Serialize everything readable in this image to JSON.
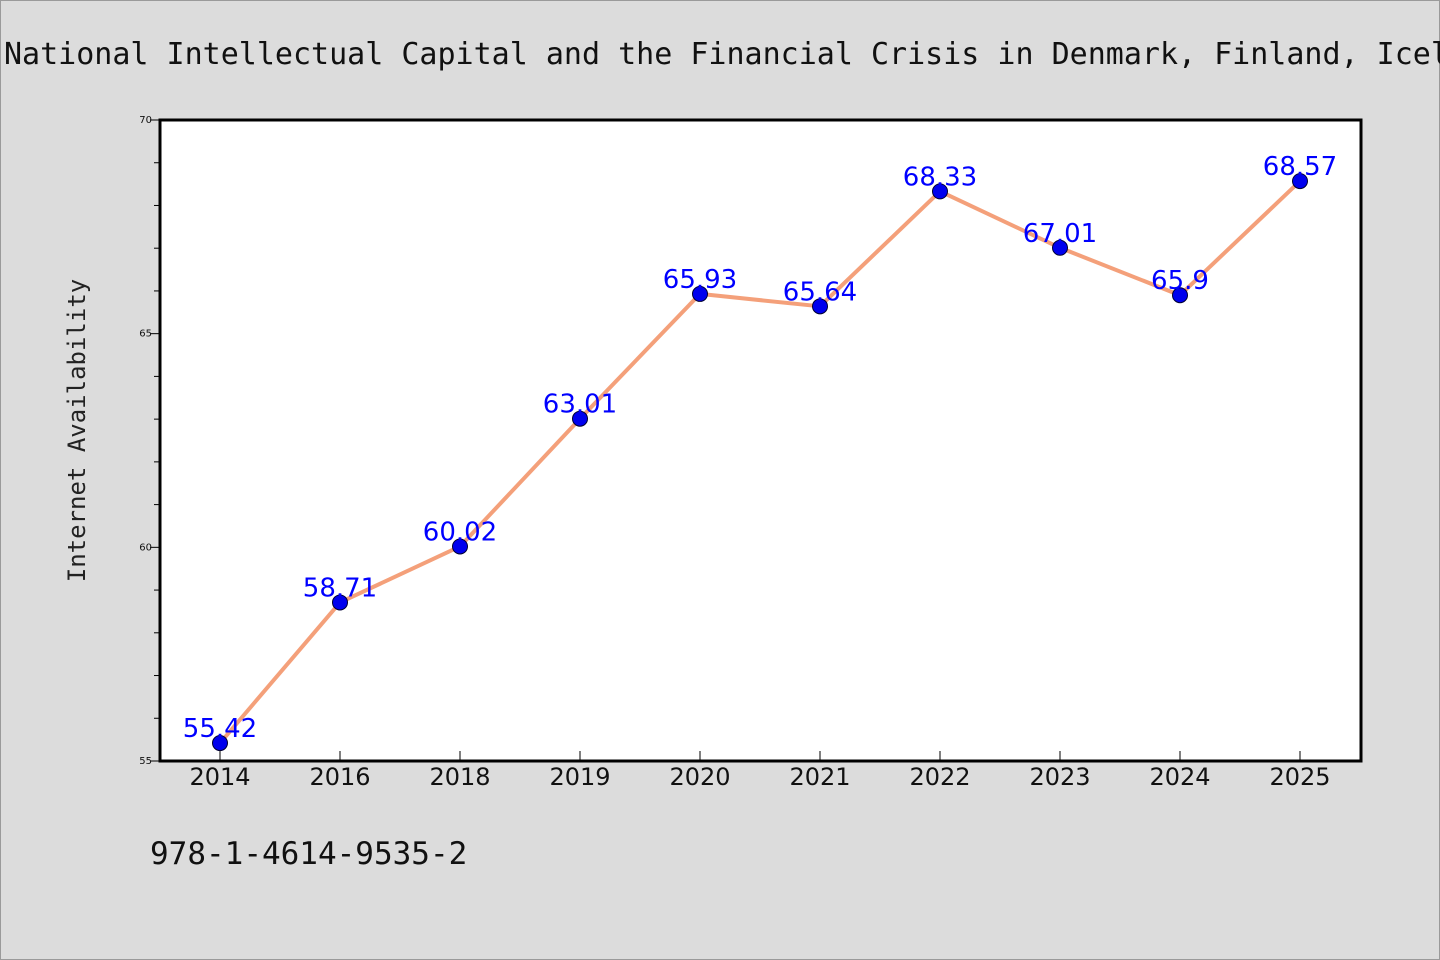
{
  "page": {
    "footer_text": "978-1-4614-9535-2"
  },
  "chart_data": {
    "type": "line",
    "title": "National Intellectual Capital and the Financial Crisis in Denmark, Finland, Iceland, Norway, and Sweden",
    "xlabel": "",
    "ylabel": "Internet Availability",
    "categories": [
      "2014",
      "2016",
      "2018",
      "2019",
      "2020",
      "2021",
      "2022",
      "2023",
      "2024",
      "2025"
    ],
    "series": [
      {
        "values": [
          55.42,
          58.71,
          60.02,
          63.01,
          65.93,
          65.64,
          68.33,
          67.01,
          65.9,
          68.57
        ],
        "labels": [
          "55.42",
          "58.71",
          "60.02",
          "63.01",
          "65.93",
          "65.64",
          "68.33",
          "67.01",
          "65.9",
          "68.57"
        ],
        "line_color": "#f4a07a",
        "marker_color": "#0000ee"
      }
    ],
    "ylim": [
      55,
      70
    ],
    "yticks": [
      "55",
      "60",
      "65",
      "70"
    ],
    "grid": false,
    "legend": "none"
  }
}
